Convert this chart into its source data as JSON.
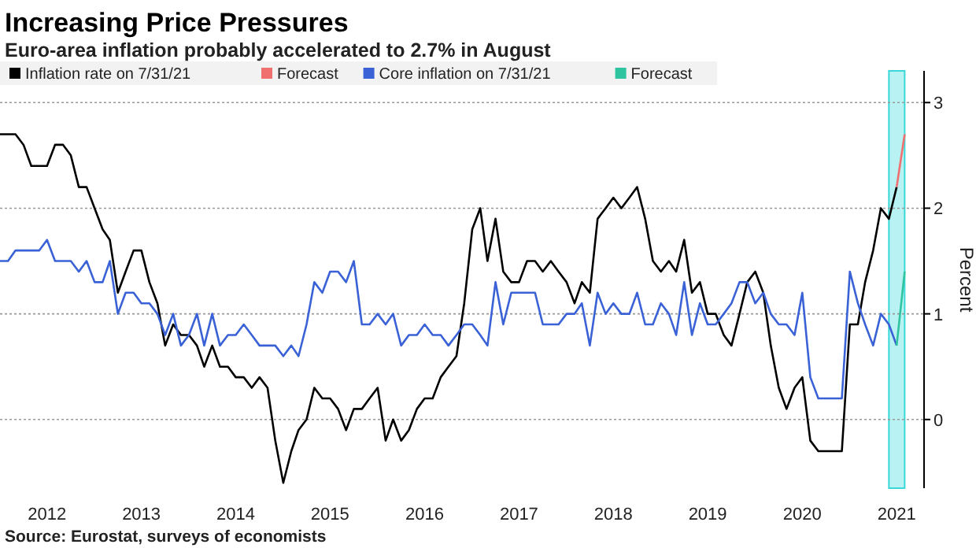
{
  "chart_data": {
    "type": "line",
    "title": "Increasing Price Pressures",
    "subtitle": "Euro-area inflation probably accelerated to 2.7% in August",
    "ylabel": "Percent",
    "x": [
      "2012-01",
      "2012-02",
      "2012-03",
      "2012-04",
      "2012-05",
      "2012-06",
      "2012-07",
      "2012-08",
      "2012-09",
      "2012-10",
      "2012-11",
      "2012-12",
      "2013-01",
      "2013-02",
      "2013-03",
      "2013-04",
      "2013-05",
      "2013-06",
      "2013-07",
      "2013-08",
      "2013-09",
      "2013-10",
      "2013-11",
      "2013-12",
      "2014-01",
      "2014-02",
      "2014-03",
      "2014-04",
      "2014-05",
      "2014-06",
      "2014-07",
      "2014-08",
      "2014-09",
      "2014-10",
      "2014-11",
      "2014-12",
      "2015-01",
      "2015-02",
      "2015-03",
      "2015-04",
      "2015-05",
      "2015-06",
      "2015-07",
      "2015-08",
      "2015-09",
      "2015-10",
      "2015-11",
      "2015-12",
      "2016-01",
      "2016-02",
      "2016-03",
      "2016-04",
      "2016-05",
      "2016-06",
      "2016-07",
      "2016-08",
      "2016-09",
      "2016-10",
      "2016-11",
      "2016-12",
      "2017-01",
      "2017-02",
      "2017-03",
      "2017-04",
      "2017-05",
      "2017-06",
      "2017-07",
      "2017-08",
      "2017-09",
      "2017-10",
      "2017-11",
      "2017-12",
      "2018-01",
      "2018-02",
      "2018-03",
      "2018-04",
      "2018-05",
      "2018-06",
      "2018-07",
      "2018-08",
      "2018-09",
      "2018-10",
      "2018-11",
      "2018-12",
      "2019-01",
      "2019-02",
      "2019-03",
      "2019-04",
      "2019-05",
      "2019-06",
      "2019-07",
      "2019-08",
      "2019-09",
      "2019-10",
      "2019-11",
      "2019-12",
      "2020-01",
      "2020-02",
      "2020-03",
      "2020-04",
      "2020-05",
      "2020-06",
      "2020-07",
      "2020-08",
      "2020-09",
      "2020-10",
      "2020-11",
      "2020-12",
      "2021-01",
      "2021-02",
      "2021-03",
      "2021-04",
      "2021-05",
      "2021-06",
      "2021-07"
    ],
    "series": [
      {
        "name": "Inflation rate on 7/31/21",
        "color": "#000000",
        "values": [
          2.7,
          2.7,
          2.7,
          2.6,
          2.4,
          2.4,
          2.4,
          2.6,
          2.6,
          2.5,
          2.2,
          2.2,
          2.0,
          1.8,
          1.7,
          1.2,
          1.4,
          1.6,
          1.6,
          1.3,
          1.1,
          0.7,
          0.9,
          0.8,
          0.8,
          0.7,
          0.5,
          0.7,
          0.5,
          0.5,
          0.4,
          0.4,
          0.3,
          0.4,
          0.3,
          -0.2,
          -0.6,
          -0.3,
          -0.1,
          0.0,
          0.3,
          0.2,
          0.2,
          0.1,
          -0.1,
          0.1,
          0.1,
          0.2,
          0.3,
          -0.2,
          0.0,
          -0.2,
          -0.1,
          0.1,
          0.2,
          0.2,
          0.4,
          0.5,
          0.6,
          1.1,
          1.8,
          2.0,
          1.5,
          1.9,
          1.4,
          1.3,
          1.3,
          1.5,
          1.5,
          1.4,
          1.5,
          1.4,
          1.3,
          1.1,
          1.3,
          1.2,
          1.9,
          2.0,
          2.1,
          2.0,
          2.1,
          2.2,
          1.9,
          1.5,
          1.4,
          1.5,
          1.4,
          1.7,
          1.2,
          1.3,
          1.0,
          1.0,
          0.8,
          0.7,
          1.0,
          1.3,
          1.4,
          1.2,
          0.7,
          0.3,
          0.1,
          0.3,
          0.4,
          -0.2,
          -0.3,
          -0.3,
          -0.3,
          -0.3,
          0.9,
          0.9,
          1.3,
          1.6,
          2.0,
          1.9,
          2.2
        ]
      },
      {
        "name": "Forecast",
        "color": "#f07070",
        "x": [
          "2021-07",
          "2021-08"
        ],
        "values": [
          2.2,
          2.7
        ]
      },
      {
        "name": "Core inflation on 7/31/21",
        "color": "#3a62d6",
        "values": [
          1.5,
          1.5,
          1.6,
          1.6,
          1.6,
          1.6,
          1.7,
          1.5,
          1.5,
          1.5,
          1.4,
          1.5,
          1.3,
          1.3,
          1.5,
          1.0,
          1.2,
          1.2,
          1.1,
          1.1,
          1.0,
          0.8,
          1.0,
          0.7,
          0.8,
          1.0,
          0.7,
          1.0,
          0.7,
          0.8,
          0.8,
          0.9,
          0.8,
          0.7,
          0.7,
          0.7,
          0.6,
          0.7,
          0.6,
          0.9,
          1.3,
          1.2,
          1.4,
          1.4,
          1.3,
          1.5,
          0.9,
          0.9,
          1.0,
          0.9,
          1.0,
          0.7,
          0.8,
          0.8,
          0.9,
          0.8,
          0.8,
          0.7,
          0.8,
          0.9,
          0.9,
          0.8,
          0.7,
          1.3,
          0.9,
          1.2,
          1.2,
          1.2,
          1.2,
          0.9,
          0.9,
          0.9,
          1.0,
          1.0,
          1.1,
          0.7,
          1.2,
          1.0,
          1.1,
          1.0,
          1.0,
          1.2,
          0.9,
          0.9,
          1.1,
          1.0,
          0.8,
          1.3,
          0.8,
          1.1,
          0.9,
          0.9,
          1.0,
          1.1,
          1.3,
          1.3,
          1.1,
          1.2,
          1.0,
          0.9,
          0.9,
          0.8,
          1.2,
          0.4,
          0.2,
          0.2,
          0.2,
          0.2,
          1.4,
          1.1,
          0.9,
          0.7,
          1.0,
          0.9,
          0.7
        ]
      },
      {
        "name": "Forecast",
        "color": "#2ec4a0",
        "x": [
          "2021-07",
          "2021-08"
        ],
        "values": [
          0.7,
          1.4
        ]
      }
    ],
    "xlim": [
      "2012-01",
      "2021-10-15"
    ],
    "xticks": [
      {
        "value": "2012-07",
        "label": "2012"
      },
      {
        "value": "2013-07",
        "label": "2013"
      },
      {
        "value": "2014-07",
        "label": "2014"
      },
      {
        "value": "2015-07",
        "label": "2015"
      },
      {
        "value": "2016-07",
        "label": "2016"
      },
      {
        "value": "2017-07",
        "label": "2017"
      },
      {
        "value": "2018-07",
        "label": "2018"
      },
      {
        "value": "2019-07",
        "label": "2019"
      },
      {
        "value": "2020-07",
        "label": "2020"
      },
      {
        "value": "2021-07",
        "label": "2021"
      }
    ],
    "ylim": [
      -0.65,
      3.3
    ],
    "yticks": [
      0,
      1,
      2,
      3
    ],
    "bands": [
      {
        "axis": "x",
        "from": "2021-06",
        "to": "2021-08",
        "color": "#b8f2f2"
      }
    ],
    "grid": "y",
    "legend": "top left",
    "line_style": "solid",
    "marker": "none",
    "annotations": [
      "Source: Eurostat, surveys of economists"
    ]
  }
}
